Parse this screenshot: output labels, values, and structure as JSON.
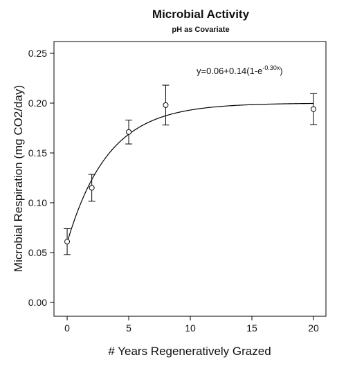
{
  "chart_data": {
    "type": "scatter",
    "title": "Microbial Activity",
    "subtitle": "pH as Covariate",
    "x_label": "# Years Regeneratively Grazed",
    "y_label": "Microbial Respiration (mg CO2/day)",
    "x": [
      0,
      2,
      5,
      8,
      20
    ],
    "values": [
      0.061,
      0.115,
      0.171,
      0.198,
      0.194
    ],
    "errors": [
      0.013,
      0.0135,
      0.012,
      0.02,
      0.0155
    ],
    "color": "#000000",
    "equation": {
      "base": "y=0.06+0.14(1-e",
      "exponent": "-0.30x",
      "close": ")"
    },
    "fit": {
      "intercept": 0.06,
      "amplitude": 0.14,
      "rate": 0.3
    },
    "xlim": [
      -1.07,
      21.01
    ],
    "ylim": [
      -0.0139,
      0.2618
    ],
    "xticks": [
      0,
      5,
      10,
      15,
      20
    ],
    "yticks": [
      {
        "value": 0,
        "label": "0.00"
      },
      {
        "value": 0.05,
        "label": "0.05"
      },
      {
        "value": 0.1,
        "label": "0.10"
      },
      {
        "value": 0.15,
        "label": "0.15"
      },
      {
        "value": 0.2,
        "label": "0.20"
      },
      {
        "value": 0.25,
        "label": "0.25"
      }
    ]
  }
}
